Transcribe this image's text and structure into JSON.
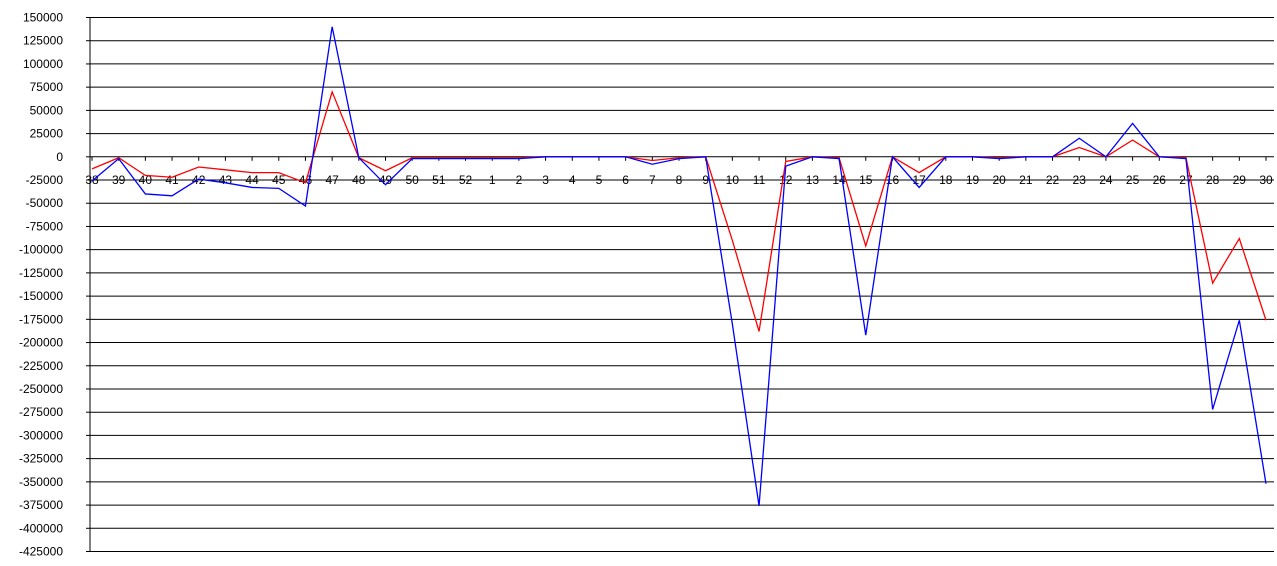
{
  "chart_data": {
    "type": "line",
    "title": "",
    "xlabel": "",
    "ylabel": "",
    "ylim": [
      -425000,
      150000
    ],
    "ytick_step": 25000,
    "grid": true,
    "legend": "none",
    "categories": [
      "38",
      "39",
      "40",
      "41",
      "42",
      "43",
      "44",
      "45",
      "46",
      "47",
      "48",
      "49",
      "50",
      "51",
      "52",
      "1",
      "2",
      "3",
      "4",
      "5",
      "6",
      "7",
      "8",
      "9",
      "10",
      "11",
      "12",
      "13",
      "14",
      "15",
      "16",
      "17",
      "18",
      "19",
      "20",
      "21",
      "22",
      "23",
      "24",
      "25",
      "26",
      "27",
      "28",
      "29",
      "30"
    ],
    "series": [
      {
        "color": "#ff0000",
        "values": [
          -13000,
          -1000,
          -20000,
          -22000,
          -11000,
          -14000,
          -17000,
          -17000,
          -28000,
          70000,
          -1000,
          -15000,
          -1000,
          -1000,
          -1000,
          -1000,
          -1000,
          0,
          0,
          0,
          0,
          -4000,
          -1000,
          0,
          -90000,
          -188000,
          -5000,
          0,
          -1000,
          -96000,
          0,
          -17000,
          0,
          0,
          -1000,
          0,
          0,
          10000,
          0,
          18000,
          0,
          -1000,
          -136000,
          -88000,
          -176000
        ]
      },
      {
        "color": "#0000ff",
        "values": [
          -26000,
          -2000,
          -40000,
          -42000,
          -24000,
          -28000,
          -33000,
          -34000,
          -53000,
          140000,
          -1000,
          -30000,
          -2000,
          -2000,
          -2000,
          -2000,
          -2000,
          0,
          0,
          0,
          0,
          -8000,
          -2000,
          0,
          -180000,
          -376000,
          -10000,
          0,
          -2000,
          -192000,
          0,
          -33000,
          0,
          0,
          -2000,
          0,
          0,
          20000,
          0,
          36000,
          0,
          -2000,
          -272000,
          -176000,
          -352000
        ]
      }
    ]
  }
}
